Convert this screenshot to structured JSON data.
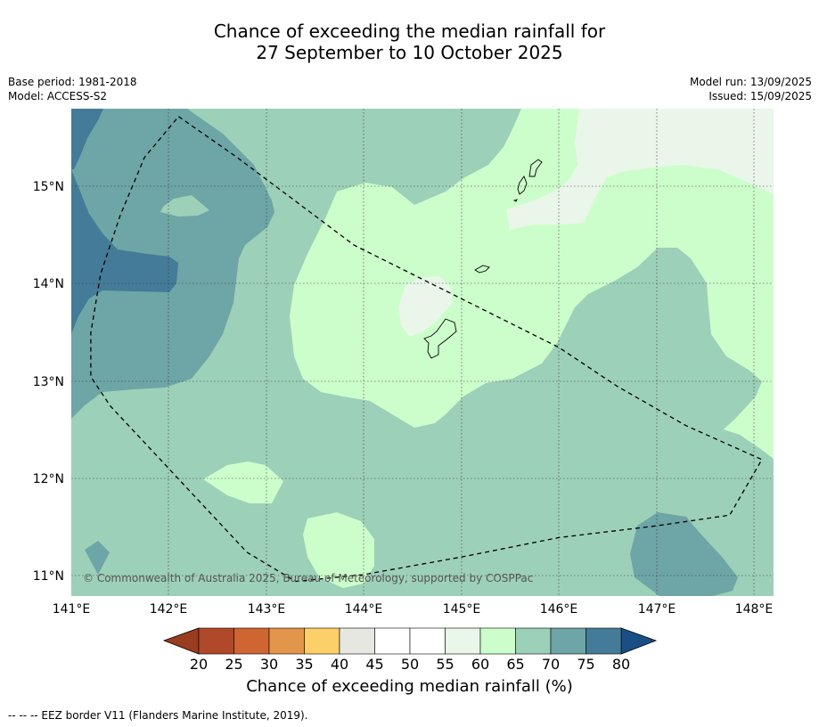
{
  "title": {
    "line1": "Chance of exceeding the median rainfall for",
    "line2": "27 September to 10 October 2025"
  },
  "meta_left": {
    "base_period": "Base period: 1981-2018",
    "model": "Model: ACCESS-S2"
  },
  "meta_right": {
    "model_run": "Model run: 13/09/2025",
    "issued": "Issued: 15/09/2025"
  },
  "map": {
    "lon_ticks": [
      "141°E",
      "142°E",
      "143°E",
      "144°E",
      "145°E",
      "146°E",
      "147°E",
      "148°E"
    ],
    "lat_ticks": [
      "15°N",
      "14°N",
      "13°N",
      "12°N",
      "11°N"
    ],
    "extent": {
      "lon_min": 141.0,
      "lon_max": 148.2,
      "lat_min": 10.8,
      "lat_max": 15.8
    },
    "copyright": "© Commonwealth of Australia 2025, Bureau of Meteorology, supported by COSPPac",
    "eez_border_lonlat": [
      [
        142.1,
        15.72
      ],
      [
        142.7,
        15.3
      ],
      [
        143.3,
        14.85
      ],
      [
        143.9,
        14.4
      ],
      [
        144.6,
        14.05
      ],
      [
        145.3,
        13.7
      ],
      [
        146.0,
        13.35
      ],
      [
        146.6,
        12.95
      ],
      [
        147.3,
        12.55
      ],
      [
        148.08,
        12.2
      ],
      [
        147.75,
        11.63
      ],
      [
        147.0,
        11.52
      ],
      [
        146.0,
        11.4
      ],
      [
        145.0,
        11.2
      ],
      [
        144.0,
        11.02
      ],
      [
        143.3,
        10.95
      ],
      [
        142.8,
        11.25
      ],
      [
        142.1,
        12.0
      ],
      [
        141.4,
        12.75
      ],
      [
        141.2,
        13.05
      ],
      [
        141.2,
        13.5
      ],
      [
        141.3,
        14.1
      ],
      [
        141.5,
        14.7
      ],
      [
        141.75,
        15.3
      ],
      [
        142.1,
        15.72
      ]
    ]
  },
  "colorbar": {
    "tick_labels": [
      "20",
      "25",
      "30",
      "35",
      "40",
      "45",
      "50",
      "55",
      "60",
      "65",
      "70",
      "75",
      "80"
    ],
    "under_color": "#9a3c1f",
    "over_color": "#1a4f86",
    "bin_colors": [
      "#b0482a",
      "#cf6531",
      "#e3954b",
      "#fdcf68",
      "#e7e7e2",
      "#ffffff",
      "#ffffff",
      "#eaf6e9",
      "#ccfecb",
      "#9dd0b8",
      "#6ea5a6",
      "#447b98"
    ],
    "title": "Chance of exceeding median rainfall (%)"
  },
  "footnote": "--  --  -- EEZ border V11 (Flanders Marine Institute, 2019)."
}
